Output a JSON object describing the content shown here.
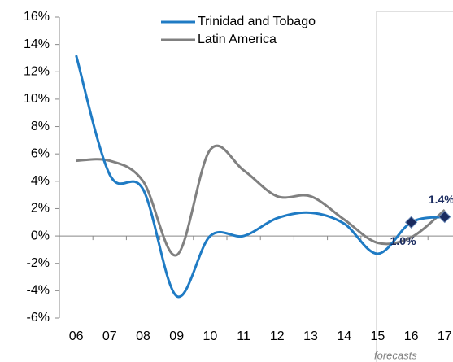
{
  "chart_data": {
    "type": "line",
    "categories": [
      "06",
      "07",
      "08",
      "09",
      "10",
      "11",
      "12",
      "13",
      "14",
      "15",
      "16",
      "17"
    ],
    "series": [
      {
        "name": "Trinidad and Tobago",
        "color": "#1f7bc4",
        "marker": "diamond",
        "marker_color": "#1a2b5f",
        "values": [
          13.2,
          4.5,
          3.4,
          -4.4,
          0.0,
          0.0,
          1.3,
          1.7,
          0.9,
          -1.3,
          1.0,
          1.4
        ],
        "value_labels": [
          null,
          null,
          null,
          null,
          null,
          null,
          null,
          null,
          null,
          null,
          "1.0%",
          "1.4%"
        ]
      },
      {
        "name": "Latin America",
        "color": "#808080",
        "values": [
          5.5,
          5.5,
          4.0,
          -1.4,
          6.3,
          4.8,
          2.9,
          2.9,
          1.2,
          -0.5,
          -0.1,
          1.9
        ]
      }
    ],
    "ylim": [
      -6,
      16
    ],
    "yticks": [
      {
        "value": -6,
        "label": "-6%"
      },
      {
        "value": -4,
        "label": "-4%"
      },
      {
        "value": -2,
        "label": "-2%"
      },
      {
        "value": 0,
        "label": "0%"
      },
      {
        "value": 2,
        "label": "2%"
      },
      {
        "value": 4,
        "label": "4%"
      },
      {
        "value": 6,
        "label": "6%"
      },
      {
        "value": 8,
        "label": "8%"
      },
      {
        "value": 10,
        "label": "10%"
      },
      {
        "value": 12,
        "label": "12%"
      },
      {
        "value": 14,
        "label": "14%"
      },
      {
        "value": 16,
        "label": "16%"
      }
    ],
    "forecast_start": "16",
    "forecast_label": "forecasts",
    "grid": false
  }
}
